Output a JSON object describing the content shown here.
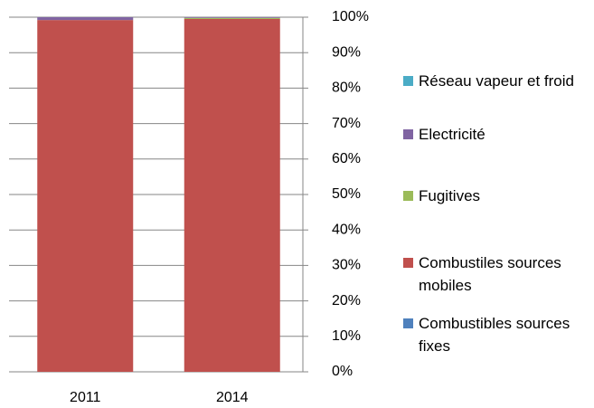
{
  "chart_data": {
    "type": "stacked_bar",
    "categories": [
      "2011",
      "2014"
    ],
    "series": [
      {
        "name": "Combustibles sources fixes",
        "color": "#4f81bd",
        "values": [
          0,
          0
        ]
      },
      {
        "name": "Combustiles sources mobiles",
        "color": "#c0504d",
        "values": [
          99.2,
          99.5
        ]
      },
      {
        "name": "Fugitives",
        "color": "#9bbb59",
        "values": [
          0,
          0.3
        ]
      },
      {
        "name": "Electricité",
        "color": "#8064a2",
        "values": [
          0.8,
          0.2
        ]
      },
      {
        "name": "Réseau vapeur et froid",
        "color": "#4bacc6",
        "values": [
          0,
          0
        ]
      }
    ],
    "ylim": [
      0,
      100
    ],
    "yticks": [
      {
        "value": 0,
        "label": "0%"
      },
      {
        "value": 10,
        "label": "10%"
      },
      {
        "value": 20,
        "label": "20%"
      },
      {
        "value": 30,
        "label": "30%"
      },
      {
        "value": 40,
        "label": "40%"
      },
      {
        "value": 50,
        "label": "50%"
      },
      {
        "value": 60,
        "label": "60%"
      },
      {
        "value": 70,
        "label": "70%"
      },
      {
        "value": 80,
        "label": "80%"
      },
      {
        "value": 90,
        "label": "90%"
      },
      {
        "value": 100,
        "label": "100%"
      }
    ],
    "grid": true,
    "legend": "right"
  }
}
